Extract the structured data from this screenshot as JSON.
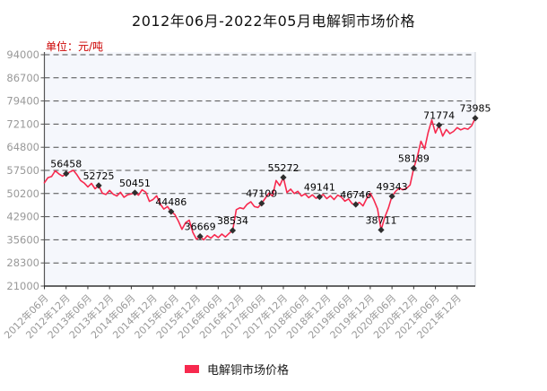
{
  "title": "2012年06月-2022年05月电解铜市场价格",
  "legend": {
    "label": "电解铜市场价格",
    "swatch_color": "#f7294e"
  },
  "chart_data": {
    "type": "line",
    "title": "2012年06月-2022年05月电解铜市场价格",
    "unit_label": "单位：元/吨",
    "series_name": "电解铜市场价格",
    "ylim": [
      21000,
      94000
    ],
    "y_ticks": [
      94000,
      86700,
      79400,
      72100,
      64800,
      57500,
      50200,
      42900,
      35600,
      28300,
      21000
    ],
    "x_tick_labels": [
      "2012年06月",
      "2012年12月",
      "2013年06月",
      "2013年12月",
      "2014年06月",
      "2014年12月",
      "2015年06月",
      "2015年12月",
      "2016年06月",
      "2016年12月",
      "2017年06月",
      "2017年12月",
      "2018年06月",
      "2018年12月",
      "2019年06月",
      "2019年12月",
      "2020年06月",
      "2020年12月",
      "2021年06月",
      "2021年12月"
    ],
    "x_tick_every_n_points": 6,
    "grid": "dashed-horizontal",
    "legend_position": "bottom",
    "monthly_values": [
      53600,
      55200,
      55600,
      57350,
      56400,
      55700,
      56458,
      57000,
      57520,
      56100,
      54300,
      53500,
      52300,
      53400,
      51700,
      52725,
      50300,
      49900,
      51200,
      50000,
      49400,
      50600,
      49000,
      49800,
      50100,
      50451,
      49700,
      51400,
      50600,
      47700,
      48300,
      49500,
      46900,
      45300,
      46100,
      44486,
      43600,
      41500,
      38900,
      41000,
      41800,
      37900,
      35800,
      36669,
      35600,
      36900,
      36100,
      37200,
      36300,
      37400,
      36500,
      37600,
      38534,
      45100,
      45700,
      45400,
      46800,
      47600,
      46100,
      45800,
      47109,
      48700,
      50300,
      49400,
      54300,
      52700,
      55272,
      50500,
      51600,
      50200,
      50900,
      49400,
      50100,
      48900,
      49800,
      48700,
      49141,
      49900,
      48600,
      49500,
      48300,
      49700,
      49100,
      47800,
      48500,
      47000,
      46746,
      47400,
      46300,
      48600,
      50300,
      48200,
      45400,
      38711,
      42700,
      45600,
      49343,
      50900,
      51900,
      51400,
      51800,
      52900,
      58189,
      61800,
      66700,
      64300,
      69500,
      73400,
      69300,
      71774,
      68300,
      70400,
      69100,
      69800,
      71000,
      70300,
      70800,
      70500,
      71600,
      73985
    ],
    "labeled_points": [
      {
        "i": 6,
        "v": 56458
      },
      {
        "i": 15,
        "v": 52725
      },
      {
        "i": 25,
        "v": 50451
      },
      {
        "i": 35,
        "v": 44486
      },
      {
        "i": 43,
        "v": 36669
      },
      {
        "i": 52,
        "v": 38534
      },
      {
        "i": 60,
        "v": 47109
      },
      {
        "i": 66,
        "v": 55272
      },
      {
        "i": 76,
        "v": 49141
      },
      {
        "i": 86,
        "v": 46746
      },
      {
        "i": 93,
        "v": 38711
      },
      {
        "i": 96,
        "v": 49343
      },
      {
        "i": 102,
        "v": 58189
      },
      {
        "i": 109,
        "v": 71774
      },
      {
        "i": 119,
        "v": 73985
      }
    ],
    "colors": {
      "line": "#f7294e",
      "marker": "#2e2e2e",
      "point_label": "#000000",
      "grid": "#4d4d4d",
      "axis": "#555555",
      "plot_border_right": "#c9ccd4",
      "plot_bg": "#f5f7fc",
      "tick_label": "#999999",
      "unit_label": "#cc0000",
      "title": "#111111"
    }
  }
}
